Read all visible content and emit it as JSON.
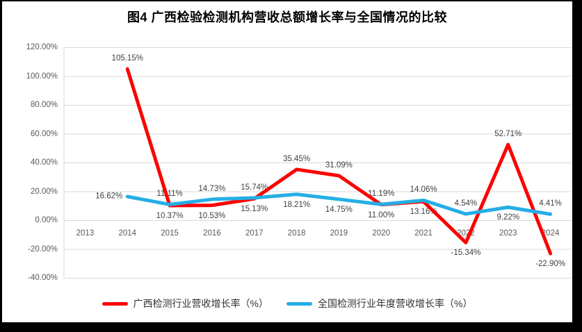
{
  "title": "图4 广西检验检测机构营收总额增长率与全国情况的比较",
  "colors": {
    "frame_border": "#000000",
    "background": "#ffffff",
    "gridline": "#d9d9d9",
    "axis_text": "#595959",
    "data_label_text": "#404040",
    "series_guangxi": "#fb0400",
    "series_national": "#25aee6"
  },
  "chart_data": {
    "type": "line",
    "title": "图4 广西检验检测机构营收总额增长率与全国情况的比较",
    "categories": [
      "2013",
      "2014",
      "2015",
      "2016",
      "2017",
      "2018",
      "2019",
      "2020",
      "2021",
      "2022",
      "2023",
      "2024"
    ],
    "series": [
      {
        "name": "广西检测行业营收增长率（%）",
        "color": "#fb0400",
        "values": [
          null,
          105.15,
          10.37,
          10.53,
          15.13,
          35.45,
          31.09,
          11.0,
          13.16,
          -15.34,
          52.71,
          -22.9
        ],
        "data_labels": [
          null,
          "105.15%",
          "10.37%",
          "10.53%",
          "15.13%",
          "35.45%",
          "31.09%",
          "11.00%",
          "13.16%",
          "-15.34%",
          "52.71%",
          "-22.90%"
        ],
        "label_positions": [
          null,
          "above",
          "below",
          "below",
          "below",
          "above",
          "above",
          "below",
          "below",
          "below",
          "above",
          "below"
        ]
      },
      {
        "name": "全国检测行业年度营收增长率（%）",
        "color": "#25aee6",
        "values": [
          null,
          16.62,
          11.11,
          14.73,
          15.74,
          18.21,
          14.75,
          11.19,
          14.06,
          4.54,
          9.22,
          4.41
        ],
        "data_labels": [
          null,
          "16.62%",
          "11.11%",
          "14.73%",
          "15.74%",
          "18.21%",
          "14.75%",
          "11.19%",
          "14.06%",
          "4.54%",
          "9.22%",
          "4.41%"
        ],
        "label_positions": [
          null,
          "left",
          "above",
          "above",
          "above",
          "below",
          "below",
          "above",
          "above",
          "above",
          "below",
          "above"
        ]
      }
    ],
    "y_axis": {
      "min": -40,
      "max": 120,
      "step": 20,
      "tick_labels": [
        "120.00%",
        "100.00%",
        "80.00%",
        "60.00%",
        "40.00%",
        "20.00%",
        "0.00%",
        "-20.00%",
        "-40.00%"
      ]
    },
    "grid": true,
    "legend_position": "bottom"
  }
}
